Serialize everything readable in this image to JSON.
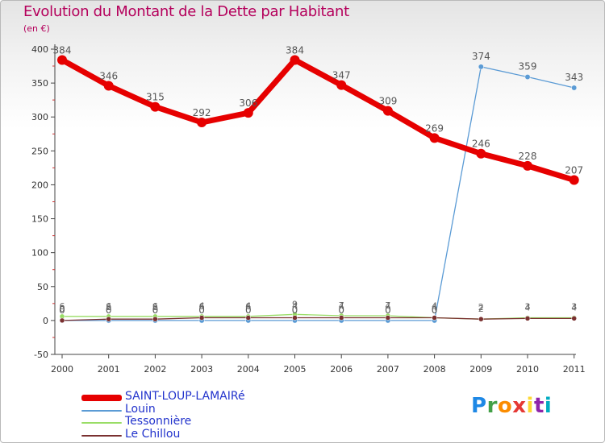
{
  "title": "Evolution du Montant de la Dette par Habitant",
  "subtitle": "(en €)",
  "brand": {
    "letters": [
      "P",
      "r",
      "o",
      "x",
      "i",
      "t",
      "i"
    ],
    "colors": [
      "#1e88e5",
      "#43a047",
      "#fb8c00",
      "#e53935",
      "#fdd835",
      "#8e24aa",
      "#00acc1"
    ]
  },
  "chart_data": {
    "type": "line",
    "x": [
      "2000",
      "2001",
      "2002",
      "2003",
      "2004",
      "2005",
      "2006",
      "2007",
      "2008",
      "2009",
      "2010",
      "2011"
    ],
    "ylim": [
      -50,
      400
    ],
    "yticks": [
      -50,
      0,
      50,
      100,
      150,
      200,
      250,
      300,
      350,
      400
    ],
    "grid": false,
    "legend": "bottom-left",
    "series": [
      {
        "name": "SAINT-LOUP-LAMAIRé",
        "color": "#e60000",
        "values": [
          384,
          346,
          315,
          292,
          306,
          384,
          347,
          309,
          269,
          246,
          228,
          207
        ],
        "labels": [
          "384",
          "346",
          "315",
          "292",
          "306",
          "384",
          "347",
          "309",
          "269",
          "246",
          "228",
          "207"
        ]
      },
      {
        "name": "Louin",
        "color": "#5b9bd5",
        "values": [
          0,
          0,
          0,
          0,
          0,
          0,
          0,
          0,
          0,
          374,
          359,
          343
        ],
        "labels": [
          "0",
          "0",
          "0",
          "0",
          "0",
          "0",
          "0",
          "0",
          "0",
          "374",
          "359",
          "343"
        ]
      },
      {
        "name": "Tessonnière",
        "color": "#99dd66",
        "values": [
          6,
          6,
          6,
          6,
          6,
          9,
          7,
          7,
          4,
          2,
          4,
          4
        ],
        "labels": [
          "6",
          "6",
          "6",
          "6",
          "6",
          "9",
          "7",
          "7",
          "4",
          "2",
          "4",
          "4"
        ]
      },
      {
        "name": "Le Chillou",
        "color": "#7a3030",
        "values": [
          0,
          2,
          2,
          4,
          4,
          4,
          4,
          4,
          4,
          2,
          3,
          3
        ],
        "labels": [
          "0",
          "2",
          "2",
          "4",
          "4",
          "4",
          "4",
          "4",
          "4",
          "2",
          "3",
          "3"
        ]
      }
    ]
  }
}
